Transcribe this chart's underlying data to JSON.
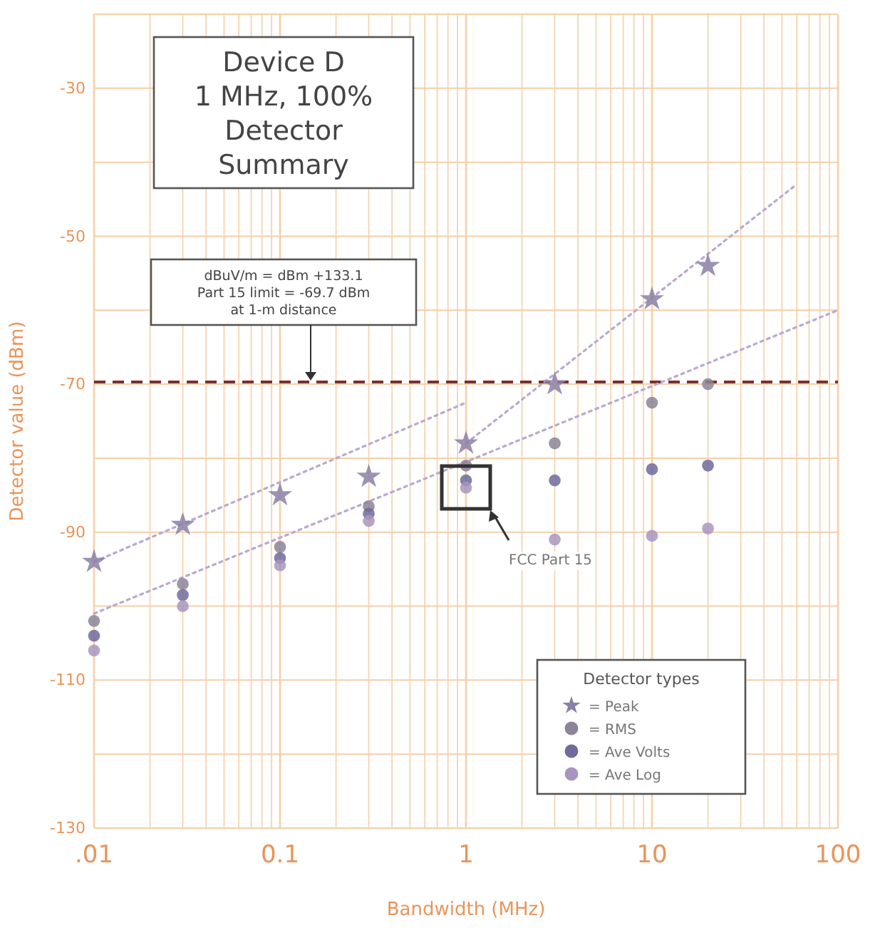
{
  "chart_data": {
    "type": "scatter",
    "title": "Device D\n1 MHz, 100%\nDetector\nSummary",
    "xlabel": "Bandwidth (MHz)",
    "ylabel": "Detector value (dBm)",
    "legend_title": "Detector types",
    "log": "x",
    "grid": true,
    "legend": "bottom right",
    "xlim": [
      0.01,
      100
    ],
    "ylim": [
      -130,
      -20
    ],
    "xticks": [
      {
        "value": 0.01,
        "label": ".01"
      },
      {
        "value": 0.02,
        "label": null
      },
      {
        "value": 0.03,
        "label": null
      },
      {
        "value": 0.04,
        "label": null
      },
      {
        "value": 0.05,
        "label": null
      },
      {
        "value": 0.06,
        "label": null
      },
      {
        "value": 0.07,
        "label": null
      },
      {
        "value": 0.08,
        "label": null
      },
      {
        "value": 0.09,
        "label": null
      },
      0.1,
      {
        "value": 0.2,
        "label": null
      },
      {
        "value": 0.3,
        "label": null
      },
      {
        "value": 0.4,
        "label": null
      },
      {
        "value": 0.5,
        "label": null
      },
      {
        "value": 0.6,
        "label": null
      },
      {
        "value": 0.7,
        "label": null
      },
      {
        "value": 0.8,
        "label": null
      },
      {
        "value": 0.9,
        "label": null
      },
      1,
      {
        "value": 2,
        "label": null
      },
      {
        "value": 3,
        "label": null
      },
      {
        "value": 4,
        "label": null
      },
      {
        "value": 5,
        "label": null
      },
      {
        "value": 6,
        "label": null
      },
      {
        "value": 7,
        "label": null
      },
      {
        "value": 8,
        "label": null
      },
      {
        "value": 9,
        "label": null
      },
      10,
      {
        "value": 20,
        "label": null
      },
      {
        "value": 30,
        "label": null
      },
      {
        "value": 40,
        "label": null
      },
      {
        "value": 50,
        "label": null
      },
      {
        "value": 60,
        "label": null
      },
      {
        "value": 70,
        "label": null
      },
      {
        "value": 80,
        "label": null
      },
      {
        "value": 90,
        "label": null
      },
      100
    ],
    "yticks": [
      -130,
      {
        "value": -120,
        "label": null
      },
      -110,
      {
        "value": -100,
        "label": null
      },
      -90,
      {
        "value": -80,
        "label": null
      },
      -70,
      {
        "value": -60,
        "label": null
      },
      -50,
      {
        "value": -40,
        "label": null
      },
      -30,
      {
        "value": -20,
        "label": null
      }
    ],
    "x": [
      0.01,
      0.03,
      0.1,
      0.3,
      1,
      3,
      10,
      20
    ],
    "series": [
      {
        "name": "= Peak",
        "color": "#8a80a6",
        "marker": "star",
        "values": [
          -94,
          -89,
          -85,
          -82.5,
          -78,
          -70,
          -58.5,
          -54
        ]
      },
      {
        "name": "= RMS",
        "color": "#8c8498",
        "marker": "circle",
        "values": [
          -102,
          -97,
          -92,
          -86.5,
          -81,
          -78,
          -72.5,
          -70
        ]
      },
      {
        "name": "= Ave Volts",
        "color": "#6f6a9c",
        "marker": "circle",
        "values": [
          -104,
          -98.5,
          -93.5,
          -87.5,
          -83,
          -83,
          -81.5,
          -81
        ]
      },
      {
        "name": "= Ave Log",
        "color": "#a896bd",
        "marker": "circle",
        "values": [
          -106,
          -100,
          -94.5,
          -88.5,
          -84,
          -91,
          -90.5,
          -89.5
        ]
      },
      {
        "type": "line",
        "x": [
          0.01,
          1
        ],
        "values": [
          -94,
          -72.5
        ],
        "color": "#bba8d0",
        "line_style": "dotted",
        "marker": "none"
      },
      {
        "type": "line",
        "x": [
          1,
          60
        ],
        "values": [
          -78,
          -43
        ],
        "color": "#bba8d0",
        "line_style": "dotted",
        "marker": "none"
      },
      {
        "type": "line",
        "x": [
          0.01,
          100
        ],
        "values": [
          -101,
          -60
        ],
        "color": "#bba8d0",
        "line_style": "dotted",
        "marker": "none"
      }
    ],
    "ref_lines": [
      {
        "axis": "y",
        "value": -69.7,
        "label": "dBuV/m = dBm +133.1\nPart 15 limit = -69.7 dBm\nat 1-m distance",
        "color": "#7a3030",
        "line_style": "dashed"
      }
    ],
    "annotations": [
      "FCC Part 15"
    ]
  }
}
